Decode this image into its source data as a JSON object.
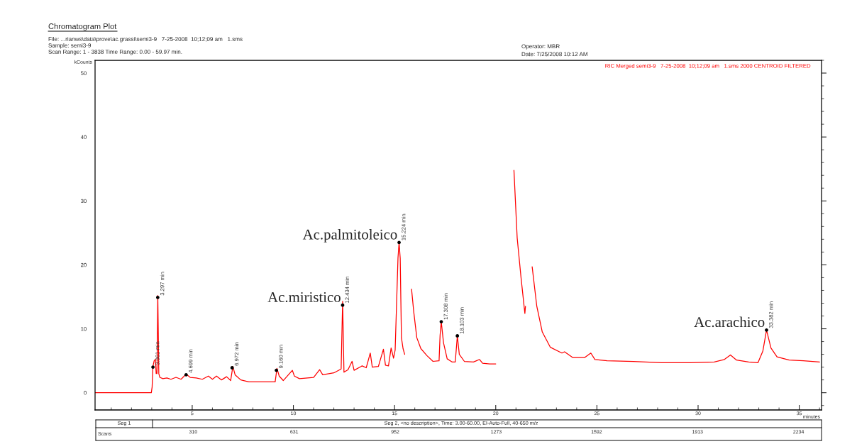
{
  "chart_data": {
    "type": "line",
    "title": "Chromatogram Plot",
    "subtitle": "File: ...rianws\\data\\prove\\ac.grassi\\semi3-9   7-25-2008  10;12;09 am   1.sms\nSample: semi3-9\nScan Range: 1 - 3838 Time Range: 0.00 - 59.97 min.",
    "ylabel": "kCounts",
    "xlabel": "minutes",
    "x2label": "Scans",
    "annotations": [
      "Operator: MBR",
      "Date: 7/25/2008 10:12 AM",
      "Seg 1",
      "Seg 2, <no description>, Time: 3.00-60.00, EI-Auto-Full, 40-650 m/z",
      {
        "text": "Ac.miristico",
        "x": 12.434,
        "y": 13.7
      },
      {
        "text": "Ac.palmitoleico",
        "x": 15.224,
        "y": 23.5
      },
      {
        "text": "Ac.arachico",
        "x": 33.382,
        "y": 9.8
      },
      {
        "text": "3.061 min",
        "x": 3.061,
        "y": 4.0
      },
      {
        "text": "3.297 min",
        "x": 3.297,
        "y": 14.9
      },
      {
        "text": "4.699 min",
        "x": 4.699,
        "y": 2.8
      },
      {
        "text": "6.972 min",
        "x": 6.972,
        "y": 3.9
      },
      {
        "text": "9.160 min",
        "x": 9.16,
        "y": 3.5
      },
      {
        "text": "12.434 min",
        "x": 12.434,
        "y": 13.7
      },
      {
        "text": "15.224 min",
        "x": 15.224,
        "y": 23.5
      },
      {
        "text": "17.308 min",
        "x": 17.308,
        "y": 11.1
      },
      {
        "text": "18.103 min",
        "x": 18.103,
        "y": 8.9
      },
      {
        "text": "33.382 min",
        "x": 33.382,
        "y": 9.8
      }
    ],
    "xlim": [
      0.2,
      36.1
    ],
    "xticks": [
      5,
      10,
      15,
      20,
      25,
      30,
      35
    ],
    "ylim": [
      -2.7,
      52
    ],
    "yticks": [
      0,
      10,
      20,
      30,
      40,
      50
    ],
    "x2lim": [
      -2,
      2307
    ],
    "x2ticks": [
      310,
      631,
      952,
      1273,
      1592,
      1913,
      2234
    ],
    "grid": false,
    "series": [
      {
        "name": "RIC Merged semi3-9   7-25-2008  10;12;09 am   1.sms 2000 CENTROID FILTERED",
        "color": "#ff0000",
        "marker": "none",
        "line_style": "solid",
        "x": [
          0.2,
          2.98,
          3.02,
          3.06,
          3.12,
          3.18,
          3.22,
          3.26,
          3.3,
          3.35,
          3.4,
          3.55,
          3.75,
          3.95,
          4.2,
          4.45,
          4.7,
          4.9,
          5.2,
          5.5,
          5.8,
          6.0,
          6.2,
          6.45,
          6.7,
          6.9,
          7.01,
          7.12,
          7.4,
          7.8,
          8.5,
          9.1,
          9.19,
          9.3,
          9.5,
          9.95,
          10.05,
          10.3,
          11.0,
          11.3,
          11.45,
          12.0,
          12.36,
          12.434,
          12.5,
          12.7,
          12.9,
          13.0,
          13.4,
          13.6,
          13.8,
          13.9,
          14.2,
          14.45,
          14.55,
          14.7,
          14.83,
          14.95,
          15.03,
          15.17,
          15.224,
          15.28,
          15.34,
          15.42,
          15.5,
          15.53,
          15.73,
          15.84,
          15.95,
          16.1,
          16.3,
          16.6,
          16.9,
          17.2,
          17.25,
          17.308,
          17.42,
          17.6,
          17.85,
          18.0,
          18.103,
          18.2,
          18.45,
          18.9,
          19.2,
          19.35,
          19.7,
          20.0,
          20.17,
          20.87,
          20.9,
          21.06,
          21.25,
          21.44,
          21.47,
          21.5,
          21.71,
          21.8,
          22.03,
          22.3,
          22.7,
          23.27,
          23.4,
          23.8,
          24.4,
          24.7,
          24.9,
          25.5,
          26.8,
          28.2,
          29.6,
          30.8,
          31.3,
          31.6,
          31.9,
          32.5,
          32.96,
          33.2,
          33.382,
          33.6,
          33.9,
          34.5,
          35.2,
          36.0
        ],
        "values": [
          0,
          0,
          0.9,
          4.1,
          5.0,
          5.2,
          3.0,
          3.0,
          15.2,
          3.0,
          2.4,
          2.2,
          2.3,
          2.1,
          2.4,
          2.1,
          2.9,
          2.4,
          2.3,
          2.1,
          2.6,
          2.1,
          2.6,
          2.0,
          2.5,
          1.9,
          4.1,
          2.8,
          2.0,
          1.7,
          1.7,
          1.7,
          3.8,
          2.6,
          1.9,
          3.5,
          2.6,
          2.2,
          2.4,
          3.6,
          2.8,
          3.1,
          3.7,
          14.3,
          3.2,
          3.6,
          4.9,
          3.5,
          4.2,
          3.9,
          6.2,
          4.0,
          4.1,
          6.8,
          4.3,
          4.2,
          7.0,
          5.4,
          6.7,
          21.1,
          23.5,
          21.0,
          8.6,
          6.9,
          6.0,
          null,
          null,
          16.2,
          12.6,
          8.6,
          6.9,
          5.8,
          4.9,
          5.0,
          9.0,
          11.1,
          7.8,
          5.3,
          4.8,
          4.8,
          8.9,
          6.0,
          4.9,
          4.8,
          5.2,
          4.6,
          4.5,
          4.5,
          null,
          null,
          34.8,
          24.2,
          18.0,
          12.4,
          13.5,
          null,
          null,
          19.7,
          13.5,
          9.5,
          7.1,
          6.2,
          6.4,
          5.5,
          5.5,
          6.2,
          5.2,
          5.0,
          4.9,
          4.7,
          4.7,
          4.8,
          5.2,
          5.9,
          5.1,
          4.8,
          4.7,
          6.5,
          9.8,
          7.0,
          5.6,
          5.1,
          5.0,
          4.8
        ]
      },
      {
        "type": "scatter",
        "color": "#000000",
        "marker": "circle",
        "x": [
          3.061,
          3.297,
          4.699,
          6.972,
          9.16,
          12.434,
          15.224,
          17.308,
          18.103,
          33.382
        ],
        "values": [
          4.0,
          14.9,
          2.8,
          3.9,
          3.5,
          13.7,
          23.5,
          11.1,
          8.9,
          9.8
        ]
      }
    ]
  }
}
